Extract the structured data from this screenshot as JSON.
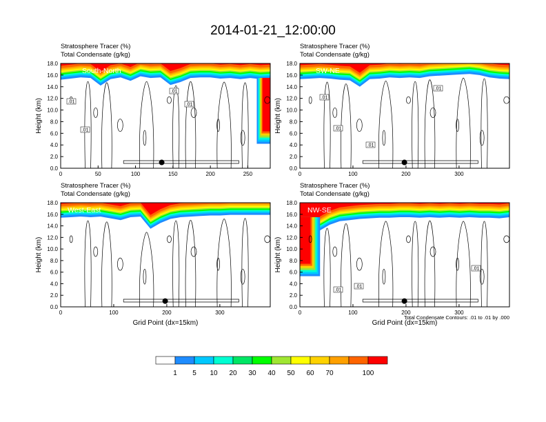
{
  "title": "2014-01-21_12:00:00",
  "colors": {
    "levels": [
      "#ffffff",
      "#1e8cff",
      "#00c8ff",
      "#00ffd2",
      "#00e664",
      "#00ff00",
      "#a0e632",
      "#ffff00",
      "#ffd200",
      "#ffa000",
      "#ff6400",
      "#ff0000"
    ]
  },
  "colorbar": {
    "labels": [
      "1",
      "5",
      "10",
      "20",
      "30",
      "40",
      "50",
      "60",
      "70",
      "100"
    ]
  },
  "footnote": "Total Condensate Contours: .01 to .01 by .000",
  "chart_data": [
    {
      "type": "heatmap",
      "label": "South-North",
      "header": [
        "Stratosphere Tracer   (%)",
        "Total Condensate   (g/kg)"
      ],
      "ylabel": "Height (km)",
      "xlabel": "",
      "xlim": [
        0,
        280
      ],
      "ylim": [
        0,
        18
      ],
      "xticks": [
        "0",
        "50",
        "100",
        "150",
        "200",
        "250"
      ],
      "yticks": [
        "0.0",
        "2.0",
        "4.0",
        "6.0",
        "8.0",
        "10.0",
        "12.0",
        "14.0",
        "16.0",
        "18.0"
      ],
      "tropopause_km": [
        15.2,
        15.4,
        15.6,
        15.5,
        14.2,
        15.3,
        15.6,
        15.0,
        15.8,
        15.5,
        15.6,
        14.3,
        14.8,
        15.5,
        15.6,
        15.6,
        15.4,
        15.5,
        15.3,
        15.5,
        15.3,
        15.4
      ],
      "intrusion": {
        "x_start": 262,
        "x_end": 280,
        "bottom_km": 4.2
      },
      "contour_labels": [
        ".01",
        ".01",
        ".01",
        ".01"
      ],
      "marker": {
        "x": 135,
        "y": 1.0
      }
    },
    {
      "type": "heatmap",
      "label": "SW-NE",
      "header": [
        "Stratosphere Tracer   (%)",
        "Total Condensate   (g/kg)"
      ],
      "ylabel": "Height (km)",
      "xlabel": "",
      "xlim": [
        0,
        395
      ],
      "ylim": [
        0,
        18
      ],
      "xticks": [
        "0",
        "100",
        "200",
        "300"
      ],
      "yticks": [
        "0.0",
        "2.0",
        "4.0",
        "6.0",
        "8.0",
        "10.0",
        "12.0",
        "14.0",
        "16.0",
        "18.0"
      ],
      "tropopause_km": [
        15.3,
        15.4,
        15.5,
        15.4,
        15.2,
        15.1,
        14.0,
        15.3,
        15.4,
        15.6,
        15.5,
        15.6,
        15.5,
        15.8,
        15.9,
        16.0,
        16.1,
        16.2,
        16.0,
        15.6,
        15.4,
        15.3
      ],
      "intrusion": null,
      "contour_labels": [
        ".01",
        ".01",
        ".01",
        ".01"
      ],
      "marker": {
        "x": 197,
        "y": 1.0
      }
    },
    {
      "type": "heatmap",
      "label": "West-East",
      "header": [
        "Stratosphere Tracer   (%)",
        "Total Condensate   (g/kg)"
      ],
      "ylabel": "Height (km)",
      "xlabel": "Grid Point (dx=15km)",
      "xlim": [
        0,
        395
      ],
      "ylim": [
        0,
        18
      ],
      "xticks": [
        "0",
        "100",
        "200",
        "300"
      ],
      "yticks": [
        "0.0",
        "2.0",
        "4.0",
        "6.0",
        "8.0",
        "10.0",
        "12.0",
        "14.0",
        "16.0",
        "18.0"
      ],
      "tropopause_km": [
        15.4,
        15.5,
        15.6,
        15.5,
        15.6,
        15.3,
        15.0,
        15.5,
        15.6,
        13.5,
        14.5,
        15.2,
        15.5,
        15.6,
        15.7,
        15.8,
        15.8,
        15.9,
        15.9,
        15.9,
        15.9,
        15.9
      ],
      "intrusion": null,
      "contour_labels": [],
      "marker": {
        "x": 197,
        "y": 1.0
      }
    },
    {
      "type": "heatmap",
      "label": "NW-SE",
      "header": [
        "Stratosphere Tracer   (%)",
        "Total Condensate   (g/kg)"
      ],
      "ylabel": "Height (km)",
      "xlabel": "Grid Point (dx=15km)",
      "xlim": [
        0,
        395
      ],
      "ylim": [
        0,
        18
      ],
      "xticks": [
        "0",
        "100",
        "200",
        "300"
      ],
      "yticks": [
        "0.0",
        "2.0",
        "4.0",
        "6.0",
        "8.0",
        "10.0",
        "12.0",
        "14.0",
        "16.0",
        "18.0"
      ],
      "tropopause_km": [
        6.2,
        5.8,
        13.2,
        14.2,
        14.8,
        15.0,
        15.2,
        15.3,
        15.4,
        15.4,
        15.5,
        15.5,
        15.4,
        15.5,
        15.4,
        15.5,
        15.4,
        15.5,
        15.4,
        15.4,
        15.3,
        15.5
      ],
      "intrusion": {
        "x_start": 0,
        "x_end": 38,
        "bottom_km": 5.3
      },
      "contour_labels": [
        ".01",
        ".01",
        ".01"
      ],
      "marker": {
        "x": 197,
        "y": 1.0
      }
    }
  ]
}
